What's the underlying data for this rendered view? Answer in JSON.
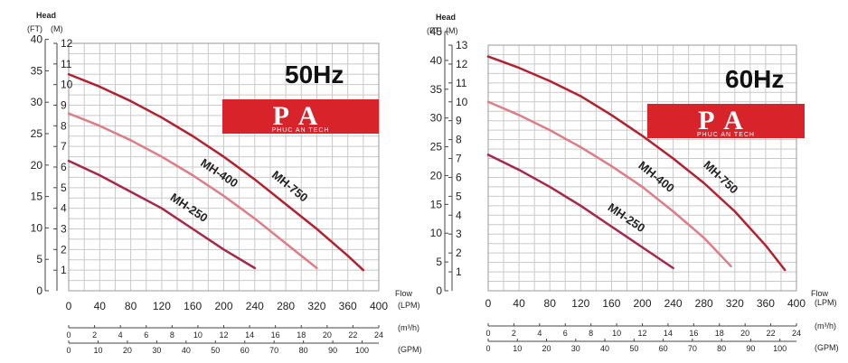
{
  "chart_data": [
    {
      "type": "line",
      "frequency_label": "50Hz",
      "logo": {
        "main": "PA",
        "sub": "PHUC AN TECH",
        "color": "#d8232a"
      },
      "head_title": "Head",
      "head_units": [
        "(FT)",
        "(M)"
      ],
      "flow_title": "Flow",
      "units": {
        "lpm": "(LPM)",
        "m3h": "(m³/h)",
        "gpm": "(GPM)"
      },
      "xlim": [
        0,
        400
      ],
      "ylim_m": [
        0,
        12
      ],
      "ft_ticks": [
        0,
        5,
        10,
        15,
        20,
        25,
        30,
        35,
        40
      ],
      "m_ticks": [
        1,
        2,
        3,
        4,
        5,
        6,
        7,
        8,
        9,
        10,
        11,
        12
      ],
      "lpm_ticks": [
        0,
        40,
        80,
        120,
        160,
        200,
        240,
        280,
        320,
        360,
        400
      ],
      "m3h_ticks": [
        0,
        2,
        4,
        6,
        8,
        10,
        12,
        14,
        16,
        18,
        20,
        22,
        24
      ],
      "gpm_ticks": [
        0,
        10,
        20,
        30,
        40,
        50,
        60,
        70,
        80,
        90,
        100
      ],
      "grid": true,
      "series": [
        {
          "name": "MH-750",
          "color": "#b5202e",
          "x": [
            0,
            40,
            80,
            120,
            160,
            200,
            240,
            280,
            320,
            360,
            380
          ],
          "y": [
            10.5,
            9.9,
            9.2,
            8.4,
            7.5,
            6.5,
            5.4,
            4.2,
            3.0,
            1.7,
            1.0
          ]
        },
        {
          "name": "MH-400",
          "color": "#df7c86",
          "x": [
            0,
            40,
            80,
            120,
            160,
            200,
            240,
            280,
            320
          ],
          "y": [
            8.6,
            8.0,
            7.3,
            6.5,
            5.6,
            4.6,
            3.5,
            2.3,
            1.1
          ]
        },
        {
          "name": "MH-250",
          "color": "#a8264a",
          "x": [
            0,
            40,
            80,
            120,
            160,
            200,
            240
          ],
          "y": [
            6.3,
            5.6,
            4.8,
            4.0,
            3.0,
            2.0,
            1.1
          ]
        }
      ]
    },
    {
      "type": "line",
      "frequency_label": "60Hz",
      "logo": {
        "main": "PA",
        "sub": "PHUC AN TECH",
        "color": "#d8232a"
      },
      "head_title": "Head",
      "head_units": [
        "(FT)",
        "(M)"
      ],
      "flow_title": "Flow",
      "units": {
        "lpm": "(LPM)",
        "m3h": "(m³/h)",
        "gpm": "(GPM)"
      },
      "xlim": [
        0,
        400
      ],
      "ylim_m": [
        0,
        13
      ],
      "ft_ticks": [
        0,
        5,
        10,
        15,
        20,
        25,
        30,
        35,
        40,
        45
      ],
      "m_ticks": [
        1,
        2,
        3,
        4,
        5,
        6,
        7,
        8,
        9,
        10,
        11,
        12,
        13
      ],
      "lpm_ticks": [
        0,
        40,
        80,
        120,
        160,
        200,
        240,
        280,
        320,
        360,
        400
      ],
      "m3h_ticks": [
        0,
        2,
        4,
        6,
        8,
        10,
        12,
        14,
        16,
        18,
        20,
        22,
        24
      ],
      "gpm_ticks": [
        0,
        10,
        20,
        30,
        40,
        50,
        60,
        70,
        80,
        90,
        100
      ],
      "grid": true,
      "series": [
        {
          "name": "MH-750",
          "color": "#b5202e",
          "x": [
            0,
            40,
            80,
            120,
            160,
            200,
            240,
            280,
            320,
            360,
            385
          ],
          "y": [
            12.4,
            11.8,
            11.1,
            10.3,
            9.3,
            8.2,
            7.0,
            5.7,
            4.2,
            2.4,
            1.1
          ]
        },
        {
          "name": "MH-400",
          "color": "#df7c86",
          "x": [
            0,
            40,
            80,
            120,
            160,
            200,
            240,
            280,
            315
          ],
          "y": [
            10.0,
            9.3,
            8.5,
            7.6,
            6.6,
            5.5,
            4.2,
            2.8,
            1.3
          ]
        },
        {
          "name": "MH-250",
          "color": "#a8264a",
          "x": [
            0,
            40,
            80,
            120,
            160,
            200,
            240
          ],
          "y": [
            7.2,
            6.4,
            5.5,
            4.5,
            3.4,
            2.3,
            1.2
          ]
        }
      ]
    }
  ]
}
